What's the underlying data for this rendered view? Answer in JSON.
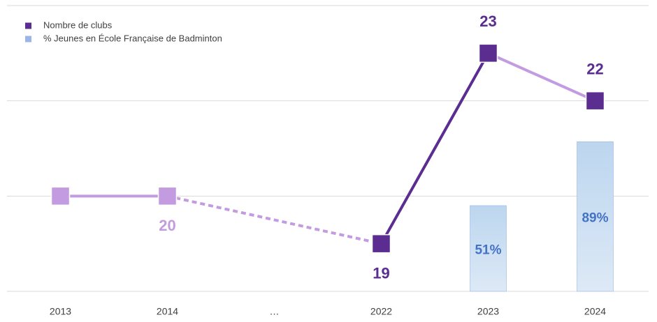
{
  "chart_data": {
    "type": "line-bar",
    "categories": [
      "2013",
      "2014",
      "…",
      "2022",
      "2023",
      "2024"
    ],
    "series": [
      {
        "name": "Nombre de clubs",
        "color": "#5b2d91",
        "type": "line",
        "values": [
          20,
          20,
          null,
          19,
          23,
          22
        ],
        "value_labels": [
          null,
          "20",
          null,
          "19",
          "23",
          "22"
        ],
        "label_position": [
          "below",
          "below",
          null,
          "below",
          "above",
          "above"
        ],
        "point_colors": [
          "#c39be0",
          "#c39be0",
          null,
          "#5b2d91",
          "#5b2d91",
          "#5b2d91"
        ],
        "segment_colors": [
          "#c39be0",
          "#c39be0",
          "#5b2d91",
          "#c39be0"
        ]
      },
      {
        "name": "% Jeunes en École Française de Badminton",
        "color": "#9bb5e8",
        "type": "bar",
        "axis": "y2",
        "label_color": "#4472c4",
        "values": [
          null,
          null,
          null,
          null,
          51,
          89
        ],
        "value_labels": [
          null,
          null,
          null,
          null,
          "51%",
          "89%"
        ]
      }
    ],
    "ylim": [
      18,
      24
    ],
    "yticks": [
      18,
      20,
      22,
      24
    ],
    "y2lim": [
      0,
      170
    ],
    "grid": true,
    "legend": "top-left"
  }
}
